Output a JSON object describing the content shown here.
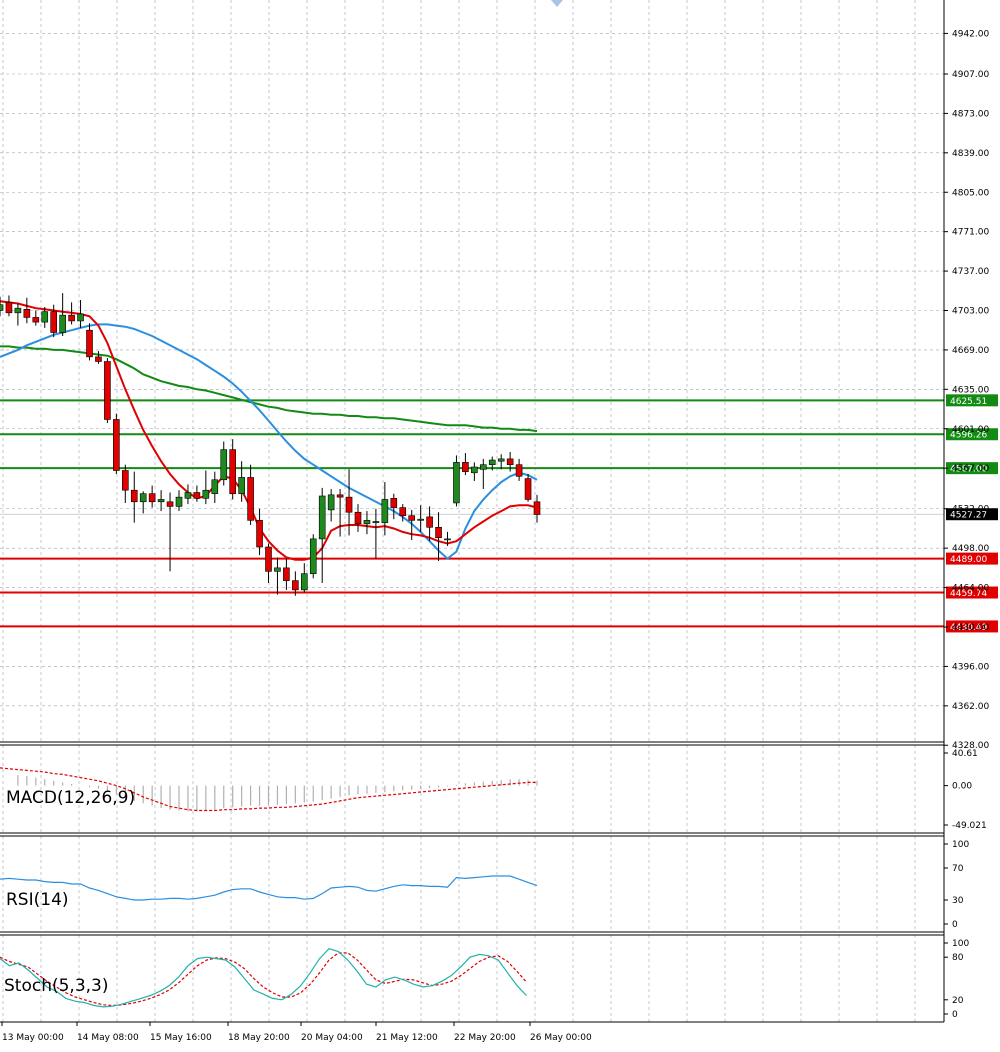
{
  "colors": {
    "background": "#ffffff",
    "grid": "#9aa7b6",
    "bull": "#1e8a1e",
    "bear": "#e00000",
    "wick": "#000000",
    "ma_fast": "#e00000",
    "ma_mid": "#2b8fe0",
    "ma_slow": "#138a13",
    "resistance": "#138a13",
    "support": "#e00000",
    "macd_hist": "#b0b0b0",
    "macd_signal": "#e00000",
    "rsi": "#2b8fe0",
    "stoch_main": "#20b2aa",
    "stoch_signal": "#e00000"
  },
  "chart_data": {
    "type": "candlestick",
    "price_axis_ticks": [
      "4942.00",
      "4907.00",
      "4873.00",
      "4839.00",
      "4805.00",
      "4771.00",
      "4737.00",
      "4703.00",
      "4669.00",
      "4635.00",
      "4601.00",
      "4567.00",
      "4532.00",
      "4498.00",
      "4464.00",
      "4430.00",
      "4396.00",
      "4362.00",
      "4328.00"
    ],
    "time_axis_labels": [
      "13 May 00:00",
      "14 May 08:00",
      "15 May 16:00",
      "18 May 20:00",
      "20 May 04:00",
      "21 May 12:00",
      "22 May 20:00",
      "26 May 00:00"
    ],
    "current_price": "4527.27",
    "resistance_levels": [
      "4625.51",
      "4596.26",
      "4567.00"
    ],
    "support_levels": [
      "4489.00",
      "4459.74",
      "4430.49"
    ],
    "candles": [
      {
        "o": 4703,
        "h": 4715,
        "l": 4698,
        "c": 4708
      },
      {
        "o": 4710,
        "h": 4716,
        "l": 4698,
        "c": 4701
      },
      {
        "o": 4701,
        "h": 4709,
        "l": 4690,
        "c": 4705
      },
      {
        "o": 4704,
        "h": 4714,
        "l": 4692,
        "c": 4697
      },
      {
        "o": 4697,
        "h": 4703,
        "l": 4690,
        "c": 4693
      },
      {
        "o": 4693,
        "h": 4706,
        "l": 4688,
        "c": 4702
      },
      {
        "o": 4702,
        "h": 4708,
        "l": 4680,
        "c": 4684
      },
      {
        "o": 4684,
        "h": 4718,
        "l": 4681,
        "c": 4699
      },
      {
        "o": 4699,
        "h": 4710,
        "l": 4691,
        "c": 4694
      },
      {
        "o": 4694,
        "h": 4712,
        "l": 4688,
        "c": 4700
      },
      {
        "o": 4686,
        "h": 4692,
        "l": 4660,
        "c": 4663
      },
      {
        "o": 4663,
        "h": 4668,
        "l": 4657,
        "c": 4659
      },
      {
        "o": 4659,
        "h": 4662,
        "l": 4606,
        "c": 4609
      },
      {
        "o": 4609,
        "h": 4614,
        "l": 4562,
        "c": 4565
      },
      {
        "o": 4565,
        "h": 4570,
        "l": 4537,
        "c": 4548
      },
      {
        "o": 4548,
        "h": 4564,
        "l": 4520,
        "c": 4538
      },
      {
        "o": 4538,
        "h": 4547,
        "l": 4528,
        "c": 4545
      },
      {
        "o": 4545,
        "h": 4552,
        "l": 4533,
        "c": 4538
      },
      {
        "o": 4538,
        "h": 4548,
        "l": 4530,
        "c": 4540
      },
      {
        "o": 4538,
        "h": 4546,
        "l": 4478,
        "c": 4534
      },
      {
        "o": 4534,
        "h": 4548,
        "l": 4530,
        "c": 4542
      },
      {
        "o": 4541,
        "h": 4553,
        "l": 4536,
        "c": 4546
      },
      {
        "o": 4546,
        "h": 4552,
        "l": 4538,
        "c": 4541
      },
      {
        "o": 4541,
        "h": 4565,
        "l": 4536,
        "c": 4548
      },
      {
        "o": 4545,
        "h": 4564,
        "l": 4537,
        "c": 4557
      },
      {
        "o": 4557,
        "h": 4590,
        "l": 4552,
        "c": 4583
      },
      {
        "o": 4583,
        "h": 4592,
        "l": 4540,
        "c": 4545
      },
      {
        "o": 4545,
        "h": 4573,
        "l": 4538,
        "c": 4559
      },
      {
        "o": 4559,
        "h": 4570,
        "l": 4518,
        "c": 4522
      },
      {
        "o": 4522,
        "h": 4532,
        "l": 4492,
        "c": 4499
      },
      {
        "o": 4499,
        "h": 4502,
        "l": 4468,
        "c": 4478
      },
      {
        "o": 4478,
        "h": 4490,
        "l": 4458,
        "c": 4481
      },
      {
        "o": 4481,
        "h": 4489,
        "l": 4462,
        "c": 4470
      },
      {
        "o": 4470,
        "h": 4478,
        "l": 4457,
        "c": 4462
      },
      {
        "o": 4462,
        "h": 4485,
        "l": 4460,
        "c": 4476
      },
      {
        "o": 4476,
        "h": 4510,
        "l": 4472,
        "c": 4506
      },
      {
        "o": 4506,
        "h": 4550,
        "l": 4468,
        "c": 4543
      },
      {
        "o": 4531,
        "h": 4549,
        "l": 4521,
        "c": 4544
      },
      {
        "o": 4544,
        "h": 4549,
        "l": 4508,
        "c": 4542
      },
      {
        "o": 4542,
        "h": 4566,
        "l": 4509,
        "c": 4529
      },
      {
        "o": 4529,
        "h": 4536,
        "l": 4512,
        "c": 4519
      },
      {
        "o": 4519,
        "h": 4530,
        "l": 4510,
        "c": 4522
      },
      {
        "o": 4520,
        "h": 4532,
        "l": 4489,
        "c": 4521
      },
      {
        "o": 4520,
        "h": 4555,
        "l": 4509,
        "c": 4540
      },
      {
        "o": 4541,
        "h": 4545,
        "l": 4523,
        "c": 4533
      },
      {
        "o": 4533,
        "h": 4536,
        "l": 4521,
        "c": 4526
      },
      {
        "o": 4526,
        "h": 4531,
        "l": 4505,
        "c": 4522
      },
      {
        "o": 4522,
        "h": 4535,
        "l": 4512,
        "c": 4523
      },
      {
        "o": 4525,
        "h": 4534,
        "l": 4504,
        "c": 4516
      },
      {
        "o": 4516,
        "h": 4529,
        "l": 4487,
        "c": 4507
      },
      {
        "o": 4506,
        "h": 4512,
        "l": 4500,
        "c": 4506
      },
      {
        "o": 4537,
        "h": 4578,
        "l": 4534,
        "c": 4572
      },
      {
        "o": 4572,
        "h": 4580,
        "l": 4561,
        "c": 4564
      },
      {
        "o": 4563,
        "h": 4572,
        "l": 4556,
        "c": 4568
      },
      {
        "o": 4566,
        "h": 4575,
        "l": 4549,
        "c": 4570
      },
      {
        "o": 4570,
        "h": 4577,
        "l": 4565,
        "c": 4574
      },
      {
        "o": 4573,
        "h": 4579,
        "l": 4566,
        "c": 4575
      },
      {
        "o": 4575,
        "h": 4581,
        "l": 4564,
        "c": 4570
      },
      {
        "o": 4570,
        "h": 4575,
        "l": 4556,
        "c": 4560
      },
      {
        "o": 4558,
        "h": 4562,
        "l": 4538,
        "c": 4540
      },
      {
        "o": 4538,
        "h": 4544,
        "l": 4520,
        "c": 4527
      }
    ],
    "ma_fast": [
      4711,
      4710,
      4709,
      4707,
      4705,
      4704,
      4703,
      4702,
      4701,
      4700,
      4698,
      4690,
      4675,
      4655,
      4635,
      4617,
      4600,
      4586,
      4573,
      4562,
      4553,
      4546,
      4541,
      4543,
      4552,
      4560,
      4558,
      4548,
      4533,
      4515,
      4504,
      4496,
      4490,
      4488,
      4488,
      4490,
      4498,
      4513,
      4517,
      4518,
      4518,
      4517,
      4516,
      4517,
      4515,
      4512,
      4510,
      4509,
      4507,
      4504,
      4502,
      4504,
      4510,
      4516,
      4521,
      4526,
      4530,
      4534,
      4535,
      4535,
      4533
    ],
    "ma_mid": [
      4663,
      4666,
      4669,
      4673,
      4676,
      4679,
      4682,
      4684,
      4686,
      4688,
      4690,
      4691,
      4691,
      4690,
      4689,
      4687,
      4684,
      4681,
      4677,
      4673,
      4669,
      4665,
      4661,
      4656,
      4651,
      4646,
      4640,
      4633,
      4625,
      4617,
      4608,
      4599,
      4590,
      4582,
      4575,
      4570,
      4565,
      4560,
      4555,
      4550,
      4546,
      4542,
      4538,
      4534,
      4530,
      4525,
      4519,
      4512,
      4504,
      4496,
      4489,
      4495,
      4515,
      4530,
      4540,
      4548,
      4555,
      4560,
      4563,
      4561,
      4557
    ],
    "ma_slow": [
      4672,
      4672,
      4671,
      4671,
      4670,
      4670,
      4669,
      4669,
      4668,
      4667,
      4666,
      4665,
      4664,
      4661,
      4657,
      4653,
      4648,
      4645,
      4642,
      4640,
      4638,
      4637,
      4635,
      4634,
      4632,
      4630,
      4628,
      4626,
      4624,
      4622,
      4620,
      4619,
      4617,
      4616,
      4615,
      4614,
      4614,
      4613,
      4613,
      4612,
      4612,
      4611,
      4611,
      4610,
      4610,
      4609,
      4608,
      4607,
      4606,
      4605,
      4604,
      4604,
      4604,
      4603,
      4602,
      4602,
      4601,
      4601,
      4600,
      4600,
      4599
    ],
    "macd": {
      "label": "MACD(12,26,9)",
      "ticks": [
        "40.61",
        "0.00",
        "-49.021"
      ],
      "histogram": [
        16,
        15,
        13,
        12,
        10,
        8,
        6,
        4,
        2,
        0,
        -2,
        -4,
        -7,
        -11,
        -15,
        -19,
        -22,
        -25,
        -28,
        -30,
        -31,
        -32,
        -32,
        -31,
        -30,
        -28,
        -27,
        -26,
        -25,
        -25,
        -24,
        -24,
        -23,
        -22,
        -21,
        -20,
        -18,
        -16,
        -14,
        -12,
        -11,
        -10,
        -9,
        -8,
        -7,
        -6,
        -5,
        -4,
        -3,
        -2,
        -1,
        1,
        3,
        4,
        5,
        6,
        7,
        8,
        8,
        7,
        6
      ],
      "signal": [
        22,
        21,
        20,
        19,
        18,
        17,
        15,
        14,
        12,
        10,
        8,
        6,
        3,
        0,
        -4,
        -9,
        -14,
        -18,
        -22,
        -26,
        -28,
        -30,
        -31,
        -31,
        -31,
        -30,
        -30,
        -29,
        -29,
        -28,
        -28,
        -27,
        -27,
        -26,
        -25,
        -24,
        -23,
        -21,
        -19,
        -17,
        -15,
        -14,
        -13,
        -12,
        -11,
        -10,
        -9,
        -8,
        -7,
        -6,
        -5,
        -4,
        -3,
        -2,
        -1,
        0,
        1,
        2,
        3,
        4,
        4
      ]
    },
    "rsi": {
      "label": "RSI(14)",
      "ticks": [
        "100",
        "70",
        "30",
        "0"
      ],
      "values": [
        56,
        57,
        56,
        55,
        55,
        53,
        52,
        52,
        50,
        50,
        45,
        42,
        38,
        34,
        32,
        30,
        30,
        31,
        31,
        32,
        32,
        31,
        32,
        34,
        36,
        40,
        43,
        44,
        44,
        40,
        37,
        34,
        33,
        33,
        31,
        32,
        38,
        45,
        46,
        47,
        46,
        42,
        41,
        44,
        47,
        49,
        48,
        48,
        47,
        47,
        46,
        58,
        57,
        58,
        59,
        60,
        60,
        60,
        56,
        52,
        48
      ]
    },
    "stoch": {
      "label": "Stoch(5,3,3)",
      "ticks": [
        "100",
        "80",
        "20",
        "0"
      ],
      "k": [
        78,
        68,
        72,
        62,
        50,
        38,
        32,
        22,
        18,
        16,
        12,
        10,
        11,
        14,
        18,
        22,
        26,
        32,
        40,
        52,
        68,
        78,
        80,
        78,
        76,
        66,
        50,
        34,
        28,
        22,
        20,
        28,
        40,
        58,
        78,
        92,
        88,
        76,
        60,
        42,
        38,
        48,
        52,
        48,
        42,
        38,
        40,
        46,
        54,
        66,
        80,
        84,
        82,
        76,
        58,
        40,
        26
      ],
      "d": [
        80,
        74,
        70,
        66,
        56,
        46,
        38,
        30,
        24,
        20,
        16,
        13,
        12,
        13,
        15,
        18,
        22,
        27,
        34,
        44,
        56,
        68,
        76,
        79,
        78,
        73,
        64,
        50,
        38,
        30,
        24,
        24,
        30,
        42,
        58,
        76,
        86,
        86,
        76,
        62,
        48,
        43,
        46,
        49,
        48,
        44,
        40,
        42,
        46,
        54,
        64,
        74,
        80,
        82,
        74,
        60,
        45
      ]
    }
  }
}
